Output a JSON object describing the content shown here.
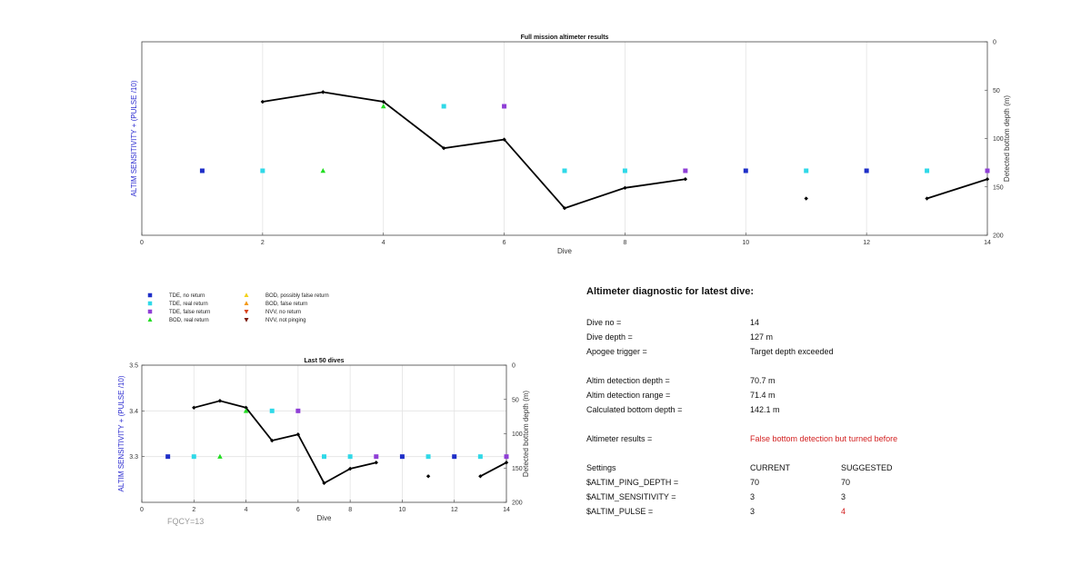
{
  "colors": {
    "tde_no_return": "#1f2fc8",
    "tde_real_return": "#30d9e8",
    "tde_false_return": "#8f3fd6",
    "bod_real_return": "#22dd22",
    "bod_possibly_false": "#f3d21a",
    "bod_false_return": "#f39a1a",
    "nvv_no_return": "#d8431c",
    "nvv_not_pinging": "#7a1a0a",
    "bottom_line": "#000000",
    "left_axis_label": "#2b2bd0",
    "alert": "#d21f1f"
  },
  "chart_data": [
    {
      "type": "scatter",
      "title": "Full mission altimeter results",
      "xlabel": "Dive",
      "ylabel_left": "ALTIM SENSITIVITY + (PULSE /10)",
      "ylabel_right": "Detected bottom depth (m)",
      "xlim": [
        0,
        14
      ],
      "ylim_right": [
        0,
        200
      ],
      "right_axis_reversed": true,
      "x_ticks": [
        0,
        2,
        4,
        6,
        8,
        10,
        12,
        14
      ],
      "y_right_ticks": [
        0,
        50,
        100,
        150,
        200
      ],
      "grid": "vertical",
      "markers": [
        {
          "x": 1,
          "y": 3.3,
          "type": "TDE, no return"
        },
        {
          "x": 2,
          "y": 3.3,
          "type": "TDE, real return"
        },
        {
          "x": 3,
          "y": 3.3,
          "type": "BOD, real return"
        },
        {
          "x": 4,
          "y": 3.4,
          "type": "BOD, real return"
        },
        {
          "x": 5,
          "y": 3.4,
          "type": "TDE, real return"
        },
        {
          "x": 6,
          "y": 3.4,
          "type": "TDE, false return"
        },
        {
          "x": 7,
          "y": 3.3,
          "type": "TDE, real return"
        },
        {
          "x": 8,
          "y": 3.3,
          "type": "TDE, real return"
        },
        {
          "x": 9,
          "y": 3.3,
          "type": "TDE, false return"
        },
        {
          "x": 10,
          "y": 3.3,
          "type": "TDE, no return"
        },
        {
          "x": 11,
          "y": 3.3,
          "type": "TDE, real return"
        },
        {
          "x": 12,
          "y": 3.3,
          "type": "TDE, no return"
        },
        {
          "x": 13,
          "y": 3.3,
          "type": "TDE, real return"
        },
        {
          "x": 14,
          "y": 3.3,
          "type": "TDE, false return"
        }
      ],
      "bottom_depth": [
        {
          "x": 2,
          "depth": 62
        },
        {
          "x": 3,
          "depth": 52
        },
        {
          "x": 4,
          "depth": 62
        },
        {
          "x": 5,
          "depth": 110
        },
        {
          "x": 6,
          "depth": 101
        },
        {
          "x": 7,
          "depth": 172
        },
        {
          "x": 8,
          "depth": 151
        },
        {
          "x": 9,
          "depth": 142
        },
        {
          "x": 11,
          "depth": 162
        },
        {
          "x": 13,
          "depth": 162
        },
        {
          "x": 14,
          "depth": 142
        }
      ]
    },
    {
      "type": "scatter",
      "title": "Last 50 dives",
      "xlabel": "Dive",
      "ylabel_left": "ALTIM SENSITIVITY + (PULSE /10)",
      "ylabel_right": "Detected bottom depth (m)",
      "xlim": [
        0,
        14
      ],
      "ylim_left": [
        3.2,
        3.5
      ],
      "ylim_right": [
        0,
        200
      ],
      "right_axis_reversed": true,
      "x_ticks": [
        0,
        2,
        4,
        6,
        8,
        10,
        12,
        14
      ],
      "y_left_ticks": [
        3.3,
        3.4,
        3.5
      ],
      "y_right_ticks": [
        0,
        50,
        100,
        150,
        200
      ],
      "grid": "both",
      "annotation": "FQCY=13"
    }
  ],
  "legend": [
    {
      "label": "TDE, no return",
      "shape": "square",
      "color": "tde_no_return"
    },
    {
      "label": "TDE, real return",
      "shape": "square",
      "color": "tde_real_return"
    },
    {
      "label": "TDE, false return",
      "shape": "square",
      "color": "tde_false_return"
    },
    {
      "label": "BOD, real return",
      "shape": "triangle-up",
      "color": "bod_real_return"
    },
    {
      "label": "BOD, possibly false return",
      "shape": "triangle-up",
      "color": "bod_possibly_false"
    },
    {
      "label": "BOD, false return",
      "shape": "triangle-up",
      "color": "bod_false_return"
    },
    {
      "label": "NVV, no return",
      "shape": "triangle-down",
      "color": "nvv_no_return"
    },
    {
      "label": "NVV, not pinging",
      "shape": "triangle-down",
      "color": "nvv_not_pinging"
    }
  ],
  "diagnostic": {
    "title": "Altimeter diagnostic for latest dive:",
    "dive_no_label": "Dive no =",
    "dive_no": "14",
    "dive_depth_label": "Dive depth =",
    "dive_depth": "127 m",
    "apogee_label": "Apogee trigger =",
    "apogee": "Target depth exceeded",
    "det_depth_label": "Altim detection depth =",
    "det_depth": "70.7 m",
    "det_range_label": "Altim detection range =",
    "det_range": "71.4 m",
    "calc_bottom_label": "Calculated bottom depth =",
    "calc_bottom": "142.1 m",
    "results_label": "Altimeter results =",
    "results": "False bottom detection but turned before",
    "settings_label": "Settings",
    "current_label": "CURRENT",
    "suggested_label": "SUGGESTED",
    "ping_depth_label": "$ALTIM_PING_DEPTH =",
    "ping_depth_current": "70",
    "ping_depth_suggested": "70",
    "sensitivity_label": "$ALTIM_SENSITIVITY =",
    "sensitivity_current": "3",
    "sensitivity_suggested": "3",
    "pulse_label": "$ALTIM_PULSE =",
    "pulse_current": "3",
    "pulse_suggested": "4"
  }
}
